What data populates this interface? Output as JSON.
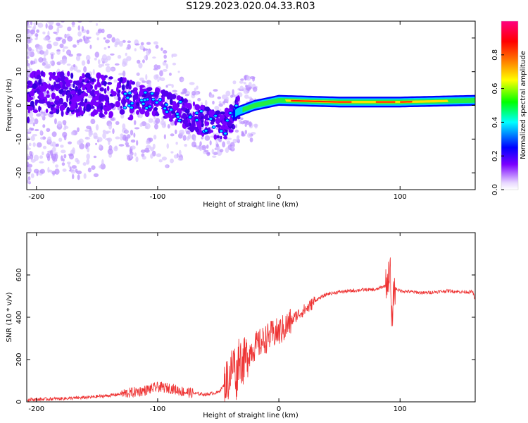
{
  "page": {
    "title": "S129.2023.020.04.33.R03"
  },
  "chart_data": [
    {
      "type": "heatmap",
      "xlabel": "Height of straight line (km)",
      "ylabel": "Frequency (Hz)",
      "xlim": [
        -208,
        162
      ],
      "ylim": [
        -25,
        25
      ],
      "x_ticks": [
        -200,
        -100,
        0,
        100
      ],
      "y_ticks": [
        -20,
        -10,
        0,
        10,
        20
      ],
      "colorbar": {
        "label": "Normalized spectral amplitude",
        "range": [
          0,
          1
        ],
        "ticks": [
          0.0,
          0.2,
          0.4,
          0.6,
          0.8
        ],
        "colormap": [
          "#ffffff",
          "#7a00ff",
          "#0000ff",
          "#00ffff",
          "#00ff00",
          "#ffff00",
          "#ff8000",
          "#ff0000",
          "#ff0080"
        ]
      },
      "signal_trace": {
        "description_points": [
          {
            "x": -205,
            "freq": 4
          },
          {
            "x": -150,
            "freq": 3
          },
          {
            "x": -120,
            "freq": 2
          },
          {
            "x": -100,
            "freq": 1
          },
          {
            "x": -80,
            "freq": -2
          },
          {
            "x": -60,
            "freq": -5
          },
          {
            "x": -45,
            "freq": -6
          },
          {
            "x": -35,
            "freq": -2
          },
          {
            "x": -20,
            "freq": 0
          },
          {
            "x": 0,
            "freq": 1.5
          },
          {
            "x": 50,
            "freq": 1
          },
          {
            "x": 100,
            "freq": 1
          },
          {
            "x": 162,
            "freq": 1.5
          }
        ]
      },
      "grid": false
    },
    {
      "type": "line",
      "xlabel": "Height of straight line (km)",
      "ylabel": "SNR (10 * v/v)",
      "xlim": [
        -208,
        162
      ],
      "ylim": [
        0,
        800
      ],
      "x_ticks": [
        -200,
        -100,
        0,
        100
      ],
      "y_ticks": [
        0,
        200,
        400,
        600
      ],
      "color": "#ee3333",
      "grid": false,
      "series": [
        {
          "x": [
            -208,
            -180,
            -160,
            -140,
            -120,
            -110,
            -100,
            -90,
            -80,
            -75,
            -70,
            -60,
            -50,
            -45,
            -40,
            -37,
            -35,
            -33,
            -30,
            -25,
            -20,
            -15,
            -10,
            -5,
            0,
            5,
            10,
            15,
            20,
            25,
            30,
            40,
            50,
            60,
            70,
            80,
            88,
            92,
            93,
            95,
            100,
            110,
            120,
            130,
            140,
            150,
            160,
            162
          ],
          "y": [
            10,
            15,
            20,
            30,
            45,
            55,
            70,
            65,
            50,
            45,
            40,
            35,
            45,
            80,
            130,
            200,
            100,
            230,
            180,
            230,
            260,
            280,
            300,
            320,
            330,
            350,
            380,
            410,
            430,
            450,
            480,
            510,
            520,
            525,
            530,
            530,
            550,
            620,
            350,
            540,
            525,
            520,
            515,
            520,
            525,
            520,
            520,
            480
          ]
        }
      ]
    }
  ]
}
